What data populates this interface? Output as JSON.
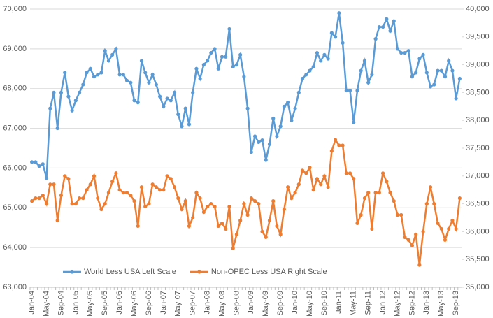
{
  "chart_data": {
    "type": "line",
    "categories": [
      "Jan-04",
      null,
      null,
      null,
      "May-04",
      null,
      null,
      null,
      "Sep-04",
      null,
      null,
      null,
      "Jan-05",
      null,
      null,
      null,
      "May-05",
      null,
      null,
      null,
      "Sep-05",
      null,
      null,
      null,
      "Jan-06",
      null,
      null,
      null,
      "May-06",
      null,
      null,
      null,
      "Sep-06",
      null,
      null,
      null,
      "Jan-07",
      null,
      null,
      null,
      "May-07",
      null,
      null,
      null,
      "Sep-07",
      null,
      null,
      null,
      "Jan-08",
      null,
      null,
      null,
      "May-08",
      null,
      null,
      null,
      "Sep-08",
      null,
      null,
      null,
      "Jan-09",
      null,
      null,
      null,
      "May-09",
      null,
      null,
      null,
      "Sep-09",
      null,
      null,
      null,
      "Jan-10",
      null,
      null,
      null,
      "May-10",
      null,
      null,
      null,
      "Sep-10",
      null,
      null,
      null,
      "Jan-11",
      null,
      null,
      null,
      "May-11",
      null,
      null,
      null,
      "Sep-11",
      null,
      null,
      null,
      "Jan-12",
      null,
      null,
      null,
      "May-12",
      null,
      null,
      null,
      "Sep-12",
      null,
      null,
      null,
      "Jan-13",
      null,
      null,
      null,
      "May-13",
      null,
      null,
      null,
      "Sep-13",
      null
    ],
    "series": [
      {
        "name": "World Less USA Left Scale",
        "color": "#5b9bd5",
        "axis": "y",
        "values": [
          66150,
          66150,
          66050,
          66100,
          65750,
          67500,
          67900,
          67000,
          67900,
          68400,
          67800,
          67450,
          67700,
          67900,
          68100,
          68400,
          68500,
          68300,
          68350,
          68400,
          68950,
          68700,
          68850,
          69000,
          68350,
          68350,
          68200,
          68150,
          67700,
          67650,
          68700,
          68400,
          68150,
          68350,
          68100,
          67800,
          67550,
          67750,
          67700,
          67900,
          67350,
          67050,
          67500,
          67100,
          67900,
          68500,
          68250,
          68600,
          68700,
          68900,
          69000,
          68500,
          68800,
          68800,
          69500,
          68550,
          68600,
          68850,
          68300,
          67500,
          66400,
          66800,
          66650,
          66700,
          66200,
          66600,
          67250,
          66800,
          67050,
          67550,
          67650,
          67200,
          67500,
          67900,
          68250,
          68350,
          68450,
          68550,
          68900,
          68700,
          68850,
          68750,
          69400,
          69300,
          69900,
          69150,
          67950,
          67950,
          67150,
          67950,
          68450,
          68700,
          68150,
          68350,
          69250,
          69550,
          69550,
          69750,
          69450,
          69700,
          69000,
          68900,
          68900,
          68950,
          68300,
          68400,
          68750,
          68850,
          68400,
          68050,
          68100,
          68450,
          68450,
          68300,
          68700,
          68450,
          67750,
          68250
        ]
      },
      {
        "name": "Non-OPEC Less USA Right Scale",
        "color": "#ed7d31",
        "axis": "y2",
        "values": [
          36550,
          36600,
          36600,
          36650,
          36500,
          36850,
          36850,
          36200,
          36650,
          37000,
          36950,
          36500,
          36500,
          36600,
          36600,
          36750,
          36850,
          37000,
          36600,
          36400,
          36500,
          36700,
          36900,
          37050,
          36750,
          36700,
          36700,
          36650,
          36550,
          36100,
          36800,
          36450,
          36500,
          36850,
          36800,
          36750,
          36750,
          37000,
          36950,
          36800,
          36600,
          36400,
          36550,
          36100,
          36250,
          36700,
          36600,
          36350,
          36450,
          36500,
          36450,
          36100,
          36150,
          36050,
          36450,
          35700,
          35950,
          36200,
          36500,
          36300,
          36600,
          36550,
          36500,
          36000,
          35900,
          36200,
          36550,
          36100,
          35950,
          36400,
          36800,
          36600,
          36700,
          36850,
          37100,
          37050,
          37150,
          36750,
          36950,
          36850,
          37000,
          36800,
          37450,
          37650,
          37550,
          37550,
          37050,
          37050,
          36950,
          36150,
          36300,
          36600,
          36700,
          36050,
          36700,
          36700,
          37050,
          36900,
          36700,
          36550,
          36300,
          36300,
          35900,
          35850,
          35750,
          35950,
          35400,
          36000,
          36500,
          36800,
          36500,
          36150,
          36050,
          35850,
          36050,
          36200,
          36050,
          36600
        ]
      }
    ],
    "ylim": [
      63000,
      70000
    ],
    "yticks": [
      {
        "value": 63000,
        "label": "63,000"
      },
      {
        "value": 64000,
        "label": "64,000"
      },
      {
        "value": 65000,
        "label": "65,000"
      },
      {
        "value": 66000,
        "label": "66,000"
      },
      {
        "value": 67000,
        "label": "67,000"
      },
      {
        "value": 68000,
        "label": "68,000"
      },
      {
        "value": 69000,
        "label": "69,000"
      },
      {
        "value": 70000,
        "label": "70,000"
      }
    ],
    "y2lim": [
      35000,
      40000
    ],
    "y2ticks": [
      {
        "value": 35000,
        "label": "35,000"
      },
      {
        "value": 35500,
        "label": "35,500"
      },
      {
        "value": 36000,
        "label": "36,000"
      },
      {
        "value": 36500,
        "label": "36,500"
      },
      {
        "value": 37000,
        "label": "37,000"
      },
      {
        "value": 37500,
        "label": "37,500"
      },
      {
        "value": 38000,
        "label": "38,000"
      },
      {
        "value": 38500,
        "label": "38,500"
      },
      {
        "value": 39000,
        "label": "39,000"
      },
      {
        "value": 39500,
        "label": "39,500"
      },
      {
        "value": 40000,
        "label": "40,000"
      }
    ],
    "grid": true,
    "legend": "lower left"
  }
}
